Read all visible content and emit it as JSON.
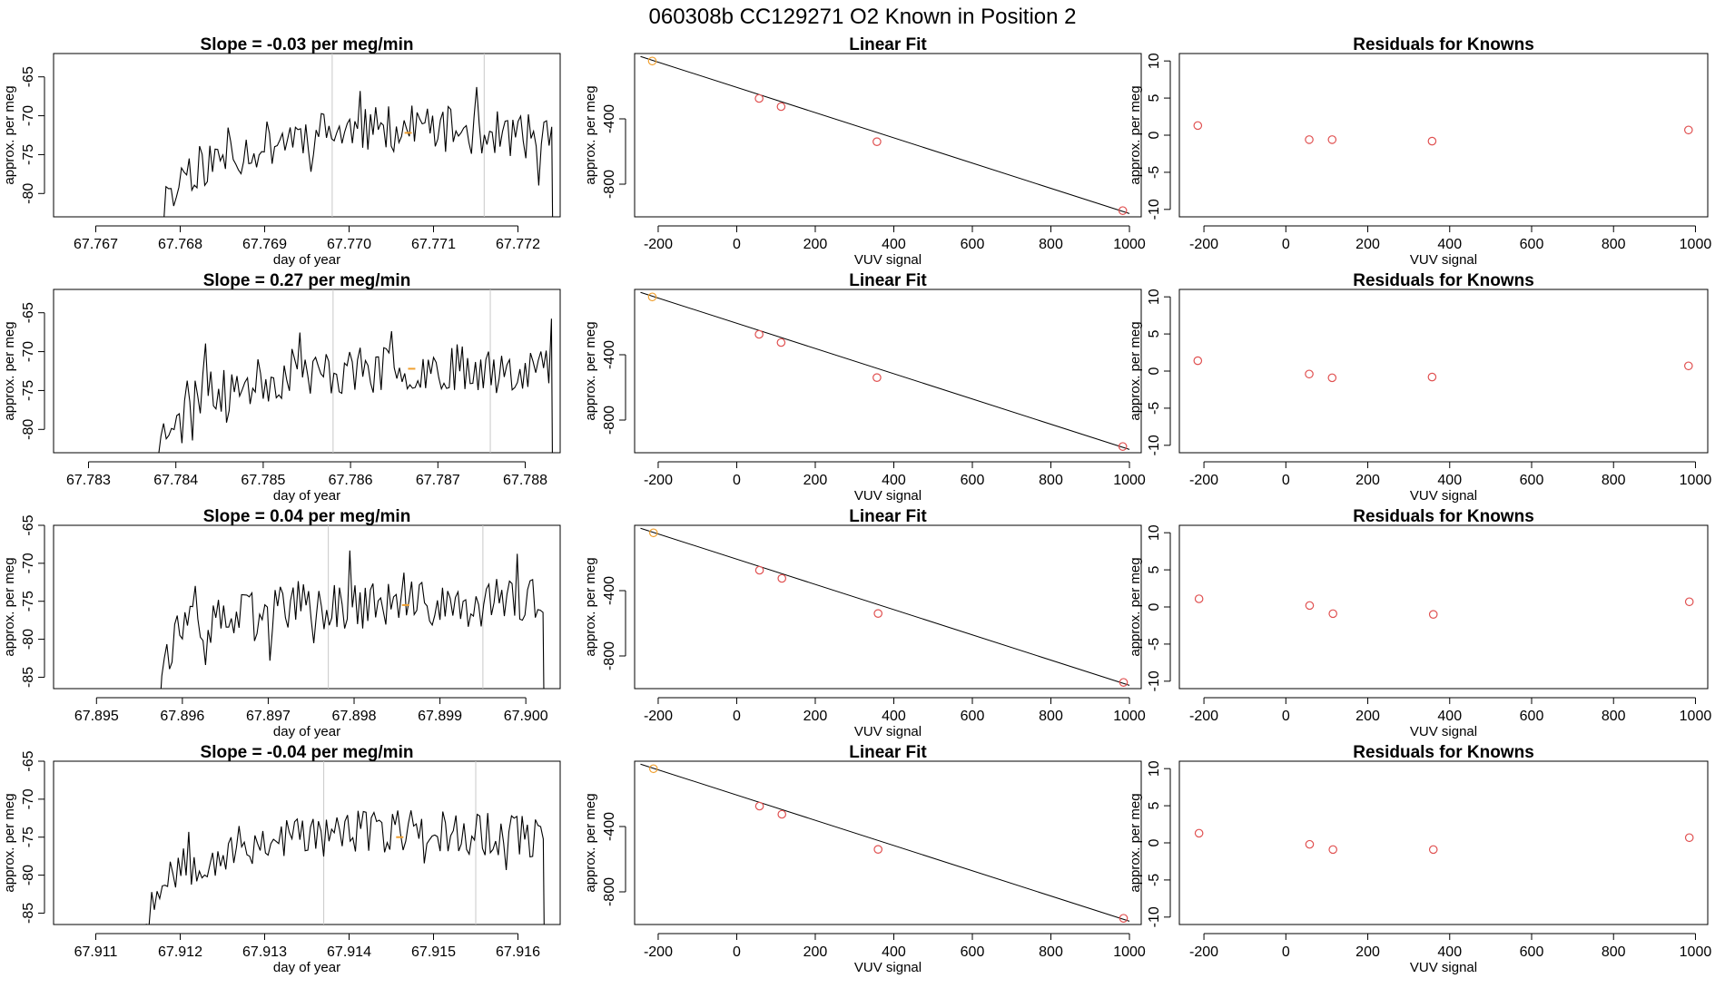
{
  "figure": {
    "title": "060308b      CC129271   O2 Known in Position  2"
  },
  "colors": {
    "line": "#000000",
    "marker": "#e05050",
    "highlight": "#f0a030",
    "guide": "#c8c8c8"
  },
  "chart_data": [
    {
      "type": "line",
      "title": "Slope =  -0.03  per meg/min",
      "xlabel": "day of year",
      "ylabel": "approx. per meg",
      "xlim": [
        67.7665,
        67.7725
      ],
      "ylim": [
        -83,
        -62
      ],
      "xticks": [
        "67.767",
        "67.768",
        "67.769",
        "67.770",
        "67.771",
        "67.772"
      ],
      "yticks": [
        "-65",
        "-70",
        "-75",
        "-80"
      ],
      "vlines": [
        67.7698,
        67.7716
      ],
      "start": 67.7678,
      "end": 67.7724,
      "levels": [
        -78,
        -72.5,
        -71.5,
        -73
      ],
      "amplitude": 3,
      "highlight_point": [
        67.7707,
        -72.2
      ],
      "seed": 11
    },
    {
      "type": "scatter",
      "title": "Linear Fit",
      "xlabel": "VUV signal",
      "ylabel": "approx. per meg",
      "xlim": [
        -260,
        1030
      ],
      "ylim": [
        -1000,
        0
      ],
      "xticks": [
        "-200",
        "0",
        "200",
        "400",
        "600",
        "800",
        "1000"
      ],
      "yticks": [
        "-400",
        "-800"
      ],
      "x": [
        -215,
        57,
        113,
        357,
        983
      ],
      "y": [
        -46,
        -275,
        -325,
        -540,
        -962
      ],
      "fit_line": {
        "x": [
          -245,
          1000
        ],
        "y": [
          -18,
          -980
        ]
      },
      "highlight_index": 0
    },
    {
      "type": "scatter",
      "title": "Residuals for Knowns",
      "xlabel": "VUV signal",
      "ylabel": "approx. per meg",
      "xlim": [
        -260,
        1030
      ],
      "ylim": [
        -11,
        11
      ],
      "xticks": [
        "-200",
        "0",
        "200",
        "400",
        "600",
        "800",
        "1000"
      ],
      "yticks": [
        "-10",
        "-5",
        "0",
        "5",
        "10"
      ],
      "x": [
        -215,
        57,
        113,
        357,
        983
      ],
      "y": [
        1.3,
        -0.6,
        -0.6,
        -0.8,
        0.7
      ]
    },
    {
      "type": "line",
      "title": "Slope =  0.27  per meg/min",
      "xlabel": "day of year",
      "ylabel": "approx. per meg",
      "xlim": [
        67.7826,
        67.7884
      ],
      "ylim": [
        -83,
        -62
      ],
      "xticks": [
        "67.783",
        "67.784",
        "67.785",
        "67.786",
        "67.787",
        "67.788"
      ],
      "yticks": [
        "-65",
        "-70",
        "-75",
        "-80"
      ],
      "vlines": [
        67.7858,
        67.7876
      ],
      "start": 67.7838,
      "end": 67.7883,
      "levels": [
        -77,
        -73,
        -72,
        -72
      ],
      "amplitude": 3,
      "highlight_point": [
        67.7867,
        -72.2
      ],
      "seed": 23
    },
    {
      "type": "scatter",
      "title": "Linear Fit",
      "xlabel": "VUV signal",
      "ylabel": "approx. per meg",
      "xlim": [
        -260,
        1030
      ],
      "ylim": [
        -1000,
        0
      ],
      "xticks": [
        "-200",
        "0",
        "200",
        "400",
        "600",
        "800",
        "1000"
      ],
      "yticks": [
        "-400",
        "-800"
      ],
      "x": [
        -215,
        57,
        113,
        357,
        983
      ],
      "y": [
        -46,
        -275,
        -325,
        -540,
        -962
      ],
      "fit_line": {
        "x": [
          -245,
          1000
        ],
        "y": [
          -18,
          -980
        ]
      },
      "highlight_index": 0
    },
    {
      "type": "scatter",
      "title": "Residuals for Knowns",
      "xlabel": "VUV signal",
      "ylabel": "approx. per meg",
      "xlim": [
        -260,
        1030
      ],
      "ylim": [
        -11,
        11
      ],
      "xticks": [
        "-200",
        "0",
        "200",
        "400",
        "600",
        "800",
        "1000"
      ],
      "yticks": [
        "-10",
        "-5",
        "0",
        "5",
        "10"
      ],
      "x": [
        -215,
        57,
        113,
        357,
        983
      ],
      "y": [
        1.4,
        -0.4,
        -0.9,
        -0.8,
        0.7
      ]
    },
    {
      "type": "line",
      "title": "Slope =  0.04  per meg/min",
      "xlabel": "day of year",
      "ylabel": "approx. per meg",
      "xlim": [
        67.8945,
        67.9004
      ],
      "ylim": [
        -86.5,
        -65
      ],
      "xticks": [
        "67.895",
        "67.896",
        "67.897",
        "67.898",
        "67.899",
        "67.900"
      ],
      "yticks": [
        "-65",
        "-70",
        "-75",
        "-80",
        "-85"
      ],
      "vlines": [
        67.8977,
        67.8995
      ],
      "start": 67.8957,
      "end": 67.9002,
      "levels": [
        -80,
        -75.5,
        -75.5,
        -75
      ],
      "amplitude": 3.2,
      "highlight_point": [
        67.8986,
        -75.5
      ],
      "seed": 37
    },
    {
      "type": "scatter",
      "title": "Linear Fit",
      "xlabel": "VUV signal",
      "ylabel": "approx. per meg",
      "xlim": [
        -260,
        1030
      ],
      "ylim": [
        -1000,
        0
      ],
      "xticks": [
        "-200",
        "0",
        "200",
        "400",
        "600",
        "800",
        "1000"
      ],
      "yticks": [
        "-400",
        "-800"
      ],
      "x": [
        -212,
        58,
        115,
        360,
        985
      ],
      "y": [
        -46,
        -275,
        -325,
        -540,
        -962
      ],
      "fit_line": {
        "x": [
          -245,
          1000
        ],
        "y": [
          -18,
          -980
        ]
      },
      "highlight_index": 0
    },
    {
      "type": "scatter",
      "title": "Residuals for Knowns",
      "xlabel": "VUV signal",
      "ylabel": "approx. per meg",
      "xlim": [
        -260,
        1030
      ],
      "ylim": [
        -11,
        11
      ],
      "xticks": [
        "-200",
        "0",
        "200",
        "400",
        "600",
        "800",
        "1000"
      ],
      "yticks": [
        "-10",
        "-5",
        "0",
        "5",
        "10"
      ],
      "x": [
        -212,
        58,
        115,
        360,
        985
      ],
      "y": [
        1.1,
        0.2,
        -0.9,
        -1.0,
        0.7
      ]
    },
    {
      "type": "line",
      "title": "Slope =  -0.04  per meg/min",
      "xlabel": "day of year",
      "ylabel": "approx. per meg",
      "xlim": [
        67.9105,
        67.9165
      ],
      "ylim": [
        -86.5,
        -65
      ],
      "xticks": [
        "67.911",
        "67.912",
        "67.913",
        "67.914",
        "67.915",
        "67.916"
      ],
      "yticks": [
        "-65",
        "-70",
        "-75",
        "-80",
        "-85"
      ],
      "vlines": [
        67.9137,
        67.9155
      ],
      "start": 67.9116,
      "end": 67.9163,
      "levels": [
        -80,
        -75,
        -74,
        -75
      ],
      "amplitude": 3,
      "highlight_point": [
        67.9146,
        -75
      ],
      "seed": 53
    },
    {
      "type": "scatter",
      "title": "Linear Fit",
      "xlabel": "VUV signal",
      "ylabel": "approx. per meg",
      "xlim": [
        -260,
        1030
      ],
      "ylim": [
        -1000,
        0
      ],
      "xticks": [
        "-200",
        "0",
        "200",
        "400",
        "600",
        "800",
        "1000"
      ],
      "yticks": [
        "-400",
        "-800"
      ],
      "x": [
        -212,
        58,
        115,
        360,
        985
      ],
      "y": [
        -46,
        -275,
        -325,
        -540,
        -962
      ],
      "fit_line": {
        "x": [
          -245,
          1000
        ],
        "y": [
          -18,
          -980
        ]
      },
      "highlight_index": 0
    },
    {
      "type": "scatter",
      "title": "Residuals for Knowns",
      "xlabel": "VUV signal",
      "ylabel": "approx. per meg",
      "xlim": [
        -260,
        1030
      ],
      "ylim": [
        -11,
        11
      ],
      "xticks": [
        "-200",
        "0",
        "200",
        "400",
        "600",
        "800",
        "1000"
      ],
      "yticks": [
        "-10",
        "-5",
        "0",
        "5",
        "10"
      ],
      "x": [
        -212,
        58,
        115,
        360,
        985
      ],
      "y": [
        1.3,
        -0.2,
        -0.9,
        -0.9,
        0.7
      ]
    }
  ]
}
